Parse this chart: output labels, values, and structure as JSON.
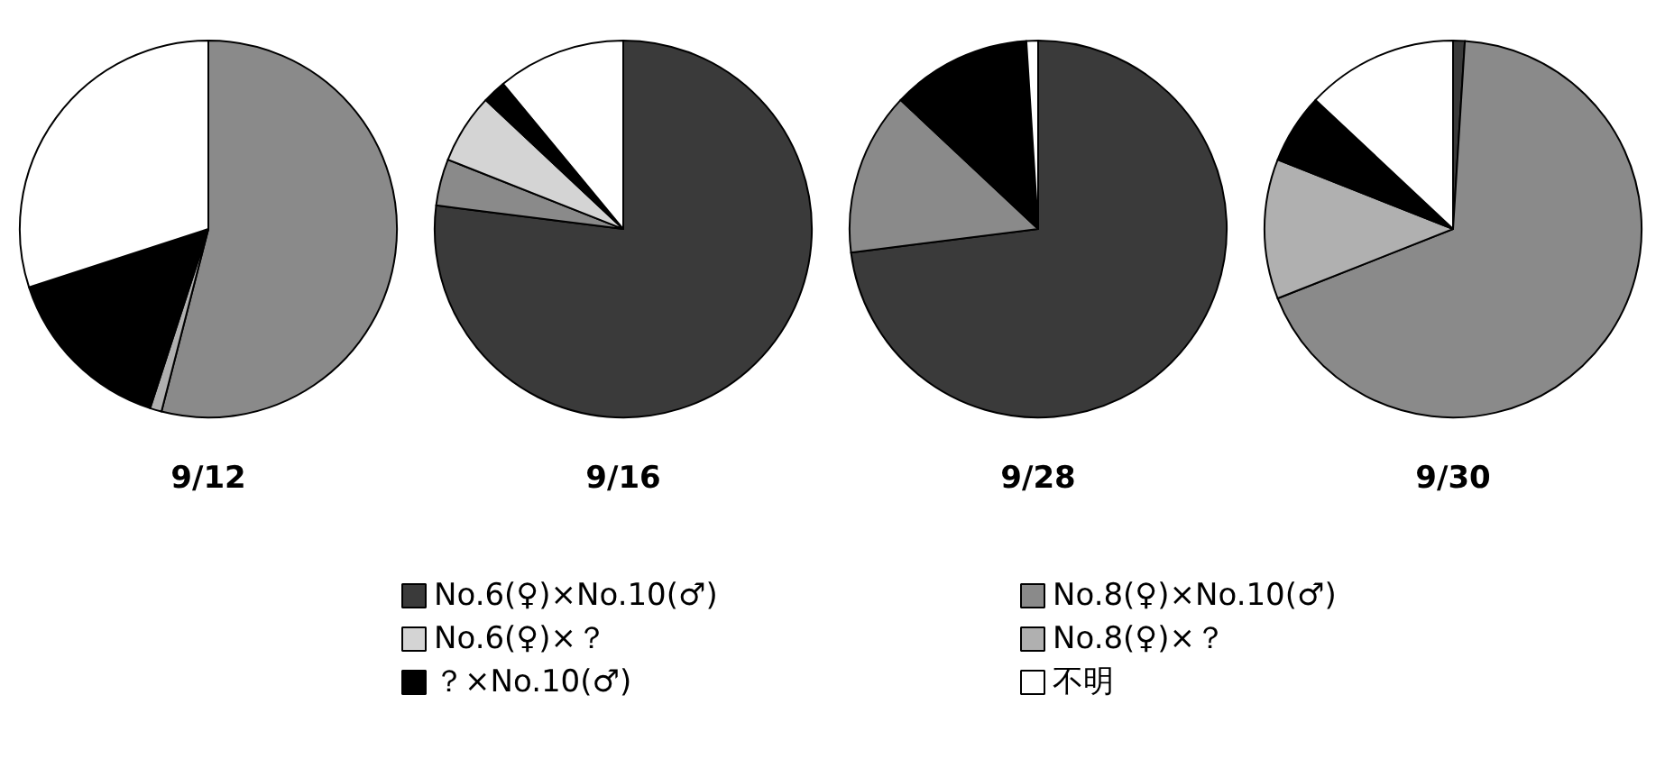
{
  "chart_data": [
    {
      "type": "pie",
      "title": "9/12",
      "legend": "bottom",
      "categories": [
        "No.6(♀)×No.10(♂)",
        "No.8(♀)×No.10(♂)",
        "No.6(♀)×？",
        "No.8(♀)×？",
        "？×No.10(♂)",
        "不明"
      ],
      "colors": [
        "#3a3a3a",
        "#8a8a8a",
        "#d4d4d4",
        "#b0b0b0",
        "#000000",
        "#ffffff"
      ],
      "values": [
        0,
        54,
        0,
        1,
        15,
        30
      ]
    },
    {
      "type": "pie",
      "title": "9/16",
      "colors": [
        "#3a3a3a",
        "#8a8a8a",
        "#d4d4d4",
        "#b0b0b0",
        "#000000",
        "#ffffff"
      ],
      "values": [
        77,
        4,
        6,
        0,
        2,
        11
      ]
    },
    {
      "type": "pie",
      "title": "9/28",
      "colors": [
        "#3a3a3a",
        "#8a8a8a",
        "#d4d4d4",
        "#b0b0b0",
        "#000000",
        "#ffffff"
      ],
      "values": [
        73,
        14,
        0,
        0,
        12,
        1
      ]
    },
    {
      "type": "pie",
      "title": "9/30",
      "colors": [
        "#3a3a3a",
        "#8a8a8a",
        "#d4d4d4",
        "#b0b0b0",
        "#000000",
        "#ffffff"
      ],
      "values": [
        1,
        68,
        0,
        12,
        6,
        13
      ]
    }
  ]
}
